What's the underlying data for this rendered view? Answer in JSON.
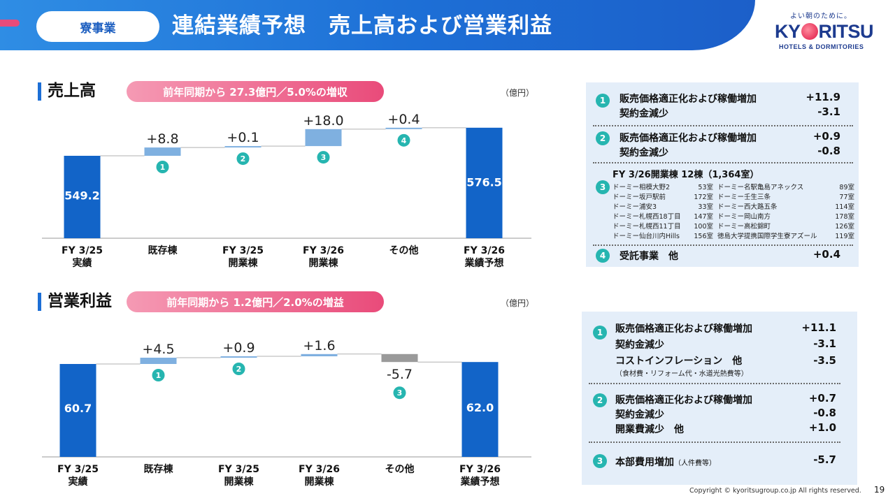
{
  "header": {
    "section_label": "寮事業",
    "title": "連結業績予想　売上高および営業利益"
  },
  "logo": {
    "tagline": "よい朝のために。",
    "word_left": "KY",
    "word_right": "RITSU",
    "sub": "HOTELS & DORMITORIES"
  },
  "sales": {
    "heading": "売上高",
    "pill": "前年同期から 27.3億円／5.0%の増収",
    "unit": "（億円）"
  },
  "profit": {
    "heading": "営業利益",
    "pill": "前年同期から 1.2億円／2.0%の増益",
    "unit": "（億円）"
  },
  "chart_data": [
    {
      "type": "bar",
      "categories": [
        [
          "FY 3/25",
          "実績"
        ],
        [
          "既存棟"
        ],
        [
          "FY 3/25",
          "開業棟"
        ],
        [
          "FY 3/26",
          "開業棟"
        ],
        [
          "その他"
        ],
        [
          "FY 3/26",
          "業績予想"
        ]
      ],
      "values": [
        549.2,
        8.8,
        0.1,
        18.0,
        0.4,
        576.5
      ],
      "value_labels": [
        "549.2",
        "+8.8",
        "+0.1",
        "+18.0",
        "+0.4",
        "576.5"
      ],
      "badges": [
        "",
        "1",
        "2",
        "3",
        "4",
        ""
      ],
      "colors": {
        "total": "#1264c8",
        "up": "#7fb0e0",
        "down": "#9a9a9a"
      }
    },
    {
      "type": "bar",
      "categories": [
        [
          "FY 3/25",
          "実績"
        ],
        [
          "既存棟"
        ],
        [
          "FY 3/25",
          "開業棟"
        ],
        [
          "FY 3/26",
          "開業棟"
        ],
        [
          "その他"
        ],
        [
          "FY 3/26",
          "業績予想"
        ]
      ],
      "values": [
        60.7,
        4.5,
        0.9,
        1.6,
        -5.7,
        62.0
      ],
      "value_labels": [
        "60.7",
        "+4.5",
        "+0.9",
        "+1.6",
        "-5.7",
        "62.0"
      ],
      "badges": [
        "",
        "1",
        "2",
        "",
        "3",
        ""
      ],
      "colors": {
        "total": "#1264c8",
        "up": "#7fb0e0",
        "down": "#9a9a9a"
      }
    }
  ],
  "sales_breakdown": {
    "items": [
      {
        "badge": "1",
        "lines": [
          {
            "label": "販売価格適正化および稼働増加",
            "value": "+11.9"
          },
          {
            "label": "契約金減少",
            "value": "-3.1"
          }
        ]
      },
      {
        "badge": "2",
        "lines": [
          {
            "label": "販売価格適正化および稼働増加",
            "value": "+0.9"
          },
          {
            "label": "契約金減少",
            "value": "-0.8"
          }
        ]
      },
      {
        "badge": "3",
        "head": "FY 3/26開業棟  12棟（1,364室）",
        "dorms": [
          {
            "name": "ドーミー相模大野2",
            "rooms": "53室",
            "name2": "ドーミー名駅亀島アネックス",
            "rooms2": "89室"
          },
          {
            "name": "ドーミー坂戸駅前",
            "rooms": "172室",
            "name2": "ドーミー壬生三条",
            "rooms2": "77室"
          },
          {
            "name": "ドーミー浦安3",
            "rooms": "33室",
            "name2": "ドーミー西大路五条",
            "rooms2": "114室"
          },
          {
            "name": "ドーミー札幌西18丁目",
            "rooms": "147室",
            "name2": "ドーミー岡山南方",
            "rooms2": "178室"
          },
          {
            "name": "ドーミー札幌西11丁目",
            "rooms": "100室",
            "name2": "ドーミー高松錦町",
            "rooms2": "126室"
          },
          {
            "name": "ドーミー仙台川内Hills",
            "rooms": "156室",
            "name2": "徳島大学提携国際学生寮アズール",
            "rooms2": "119室"
          }
        ]
      },
      {
        "badge": "4",
        "lines": [
          {
            "label": "受託事業　他",
            "value": "+0.4"
          }
        ]
      }
    ]
  },
  "profit_breakdown": {
    "items": [
      {
        "badge": "1",
        "lines": [
          {
            "label": "販売価格適正化および稼働増加",
            "value": "+11.1"
          },
          {
            "label": "契約金減少",
            "value": "-3.1"
          },
          {
            "label": "コストインフレーション　他",
            "value": "-3.5"
          }
        ],
        "note": "（食材費・リフォーム代・水道光熱費等）"
      },
      {
        "badge": "2",
        "lines": [
          {
            "label": "販売価格適正化および稼働増加",
            "value": "+0.7"
          },
          {
            "label": "契約金減少",
            "value": "-0.8"
          },
          {
            "label": "開業費減少　他",
            "value": "+1.0"
          }
        ]
      },
      {
        "badge": "3",
        "lines": [
          {
            "label": "本部費用増加",
            "value": "-5.7"
          }
        ],
        "label_suffix": "（人件費等）"
      }
    ]
  },
  "footer": {
    "copyright": "Copyright © kyoritsugroup.co.jp All rights reserved.",
    "page": "19"
  }
}
